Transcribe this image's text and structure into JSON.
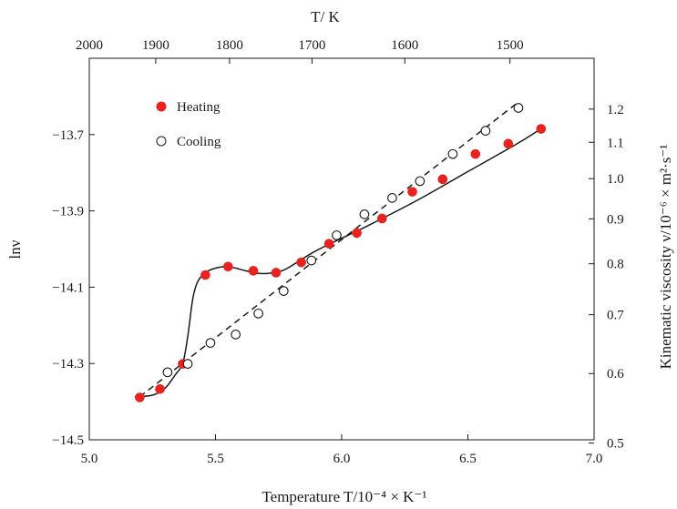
{
  "chart_data": {
    "type": "scatter",
    "title": "",
    "xlabel": "Temperature T/10⁻⁴ × K⁻¹",
    "ylabel": "lnν",
    "y2label": "Kinematic viscosity ν/10⁻⁶ × m²·s⁻¹",
    "x2label": "T/ K",
    "xlim": [
      5.0,
      7.0
    ],
    "ylim": [
      -14.5,
      -13.5
    ],
    "x_ticks": [
      "5.0",
      "5.5",
      "6.0",
      "6.5",
      "7.0"
    ],
    "y_ticks": [
      "−14.5",
      "−14.3",
      "−14.1",
      "−13.9",
      "−13.7"
    ],
    "top_ticks": [
      "2000",
      "1900",
      "1800",
      "1700",
      "1600",
      "1500"
    ],
    "right_ticks": [
      "0.5",
      "0.6",
      "0.7",
      "0.8",
      "0.9",
      "1.0",
      "1.1",
      "1.2"
    ],
    "grid": false,
    "legend_position": "top-left",
    "series": [
      {
        "name": "Heating",
        "marker": "filled-circle",
        "color": "#e8221f",
        "x": [
          5.2,
          5.28,
          5.37,
          5.46,
          5.55,
          5.65,
          5.74,
          5.84,
          5.95,
          6.06,
          6.16,
          6.28,
          6.4,
          6.53,
          6.66,
          6.79
        ],
        "y": [
          -14.389,
          -14.367,
          -14.301,
          -14.068,
          -14.046,
          -14.057,
          -14.062,
          -14.035,
          -13.986,
          -13.958,
          -13.92,
          -13.85,
          -13.817,
          -13.751,
          -13.724,
          -13.685
        ]
      },
      {
        "name": "Cooling",
        "marker": "open-circle",
        "color": "#1a1a1a",
        "x": [
          5.31,
          5.39,
          5.48,
          5.58,
          5.67,
          5.77,
          5.88,
          5.98,
          6.09,
          6.2,
          6.31,
          6.44,
          6.57,
          6.7
        ],
        "y": [
          -14.323,
          -14.301,
          -14.246,
          -14.224,
          -14.169,
          -14.11,
          -14.03,
          -13.964,
          -13.909,
          -13.866,
          -13.822,
          -13.751,
          -13.69,
          -13.63
        ]
      }
    ],
    "fit_lines": [
      {
        "name": "heating-fit",
        "style": "solid",
        "x": [
          5.18,
          5.25,
          5.3,
          5.34,
          5.37,
          5.39,
          5.41,
          5.43,
          5.46,
          5.5,
          5.55,
          5.62,
          5.67,
          5.72,
          5.78,
          5.9,
          6.1,
          6.3,
          6.5,
          6.7,
          6.8
        ],
        "y": [
          -14.387,
          -14.383,
          -14.365,
          -14.33,
          -14.3,
          -14.23,
          -14.13,
          -14.085,
          -14.062,
          -14.05,
          -14.046,
          -14.057,
          -14.064,
          -14.063,
          -14.052,
          -14.004,
          -13.94,
          -13.872,
          -13.797,
          -13.722,
          -13.68
        ]
      },
      {
        "name": "cooling-fit",
        "style": "dashed",
        "x": [
          5.2,
          6.69
        ],
        "y": [
          -14.387,
          -13.62
        ]
      }
    ]
  }
}
